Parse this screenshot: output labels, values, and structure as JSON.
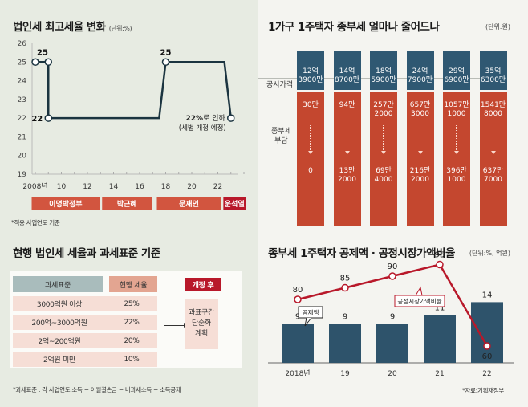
{
  "panel1": {
    "title": "법인세 최고세율 변화",
    "unit": "(단위:%)",
    "footnote": "*적용 사업연도 기준",
    "annotation_line1": "22%로 인하",
    "annotation_line2": "(세법 개정 예정)",
    "governments": [
      {
        "name": "이명박정부",
        "color": "#d2553f"
      },
      {
        "name": "박근혜",
        "color": "#d2553f"
      },
      {
        "name": "문재인",
        "color": "#d2553f"
      },
      {
        "name": "윤석열",
        "color": "#b8182a"
      }
    ]
  },
  "panel2": {
    "title": "1가구 1주택자 종부세 얼마나 줄어드나",
    "unit": "(단위:원)",
    "row_label_price": "공시가격",
    "row_label_tax": "종부세\n부담",
    "tax_label_line1": "종부세",
    "tax_label_line2": "부담",
    "columns": [
      {
        "price1": "12억",
        "price2": "3900만",
        "before1": "30만",
        "before2": "",
        "after1": "0",
        "after2": ""
      },
      {
        "price1": "14억",
        "price2": "8700만",
        "before1": "94만",
        "before2": "",
        "after1": "13만",
        "after2": "2000"
      },
      {
        "price1": "18억",
        "price2": "5900만",
        "before1": "257만",
        "before2": "2000",
        "after1": "69만",
        "after2": "4000"
      },
      {
        "price1": "24억",
        "price2": "7900만",
        "before1": "657만",
        "before2": "3000",
        "after1": "216만",
        "after2": "2000"
      },
      {
        "price1": "29억",
        "price2": "6900만",
        "before1": "1057만",
        "before2": "1000",
        "after1": "396만",
        "after2": "1000"
      },
      {
        "price1": "35억",
        "price2": "6300만",
        "before1": "1541만",
        "before2": "8000",
        "after1": "637만",
        "after2": "7000"
      }
    ],
    "colors": {
      "price": "#2f5872",
      "tax": "#c4472f"
    }
  },
  "panel3": {
    "title": "현행 법인세 세율과 과세표준 기준",
    "headers": {
      "base": "과세표준",
      "rate": "현행 세율",
      "after": "개정 후"
    },
    "rows": [
      {
        "base": "3000억원 이상",
        "rate": "25%"
      },
      {
        "base": "200억~3000억원",
        "rate": "22%"
      },
      {
        "base": "2억~200억원",
        "rate": "20%"
      },
      {
        "base": "2억원 미만",
        "rate": "10%"
      }
    ],
    "after_line1": "과표구간",
    "after_line2": "단순화",
    "after_line3": "계획",
    "footnote": "*과세표준 : 각 사업연도 소득 − 이월결손금 − 비과세소득 − 소득공제",
    "colors": {
      "base_header": "#a9bcbc",
      "rate_header": "#e3a591",
      "after_header": "#b8182a",
      "row": "#f6ded6"
    }
  },
  "panel4": {
    "title": "종부세 1주택자 공제액 · 공정시장가액비율",
    "unit": "(단위:%, 억원)",
    "callout_bar": "공제액",
    "callout_line": "공정시장가액비율",
    "source": "*자료:기획재정부"
  },
  "chart_data": [
    {
      "type": "line",
      "title": "법인세 최고세율 변화",
      "ylabel": "단위:%",
      "x": [
        2008,
        2009,
        2009,
        2017.5,
        2018,
        2022.5,
        2023
      ],
      "y": [
        25,
        25,
        22,
        22,
        25,
        25,
        22
      ],
      "markers": [
        {
          "x": 2008,
          "y": 25,
          "label": "25"
        },
        {
          "x": 2009,
          "y": 25,
          "label": ""
        },
        {
          "x": 2009,
          "y": 22,
          "label": "22"
        },
        {
          "x": 2018,
          "y": 25,
          "label": "25"
        },
        {
          "x": 2023,
          "y": 22,
          "label": "22%로 인하"
        }
      ],
      "xticks": [
        "2008년",
        "10",
        "12",
        "14",
        "16",
        "18",
        "20",
        "22"
      ],
      "xtick_values": [
        2008,
        2010,
        2012,
        2014,
        2016,
        2018,
        2020,
        2022
      ],
      "yticks": [
        19,
        20,
        21,
        22,
        23,
        24,
        25,
        26
      ],
      "xlim": [
        2008,
        2024
      ],
      "ylim": [
        19,
        26
      ],
      "line_color": "#1b3440"
    },
    {
      "type": "bar",
      "title": "종부세 1주택자 공제액 · 공정시장가액비율",
      "categories": [
        "2018년",
        "19",
        "20",
        "21",
        "22"
      ],
      "series": [
        {
          "name": "공제액",
          "kind": "bar",
          "values": [
            9,
            9,
            9,
            11,
            14
          ],
          "color": "#2e536b",
          "unit": "억원"
        },
        {
          "name": "공정시장가액비율",
          "kind": "line",
          "values": [
            80,
            85,
            90,
            95,
            60
          ],
          "color": "#b8182a",
          "unit": "%"
        }
      ]
    }
  ]
}
